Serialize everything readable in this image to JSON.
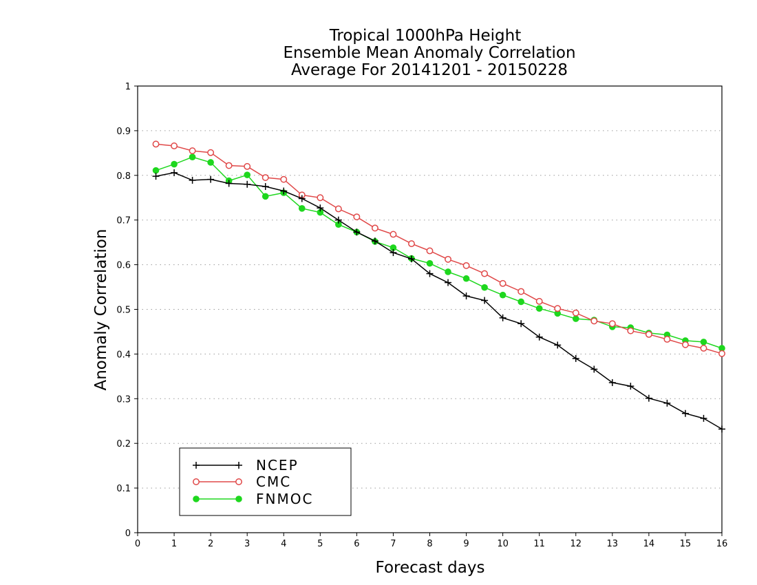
{
  "chart_data": {
    "type": "line",
    "title": [
      "Tropical 1000hPa Height",
      "Ensemble Mean Anomaly Correlation",
      "Average For 20141201 - 20150228"
    ],
    "xlabel": "Forecast days",
    "ylabel": "Anomaly Correlation",
    "xlim": [
      0,
      16
    ],
    "ylim": [
      0,
      1
    ],
    "xticks": [
      "0",
      "1",
      "2",
      "3",
      "4",
      "5",
      "6",
      "7",
      "8",
      "9",
      "10",
      "11",
      "12",
      "13",
      "14",
      "15",
      "16"
    ],
    "yticks": [
      "0",
      "0.1",
      "0.2",
      "0.3",
      "0.4",
      "0.5",
      "0.6",
      "0.7",
      "0.8",
      "0.9",
      "1"
    ],
    "grid": "dotted-horizontal",
    "legend_position": "bottom-left",
    "x": [
      0.5,
      1,
      1.5,
      2,
      2.5,
      3,
      3.5,
      4,
      4.5,
      5,
      5.5,
      6,
      6.5,
      7,
      7.5,
      8,
      8.5,
      9,
      9.5,
      10,
      10.5,
      11,
      11.5,
      12,
      12.5,
      13,
      13.5,
      14,
      14.5,
      15,
      15.5,
      16
    ],
    "series": [
      {
        "name": "NCEP",
        "color": "#000000",
        "marker": "plus",
        "values": [
          0.798,
          0.806,
          0.789,
          0.791,
          0.782,
          0.78,
          0.775,
          0.765,
          0.748,
          0.727,
          0.7,
          0.673,
          0.653,
          0.627,
          0.613,
          0.58,
          0.56,
          0.53,
          0.52,
          0.481,
          0.468,
          0.438,
          0.42,
          0.39,
          0.366,
          0.336,
          0.328,
          0.301,
          0.29,
          0.267,
          0.256,
          0.232
        ]
      },
      {
        "name": "CMC",
        "color": "#e04848",
        "marker": "open-circle",
        "values": [
          0.87,
          0.866,
          0.855,
          0.851,
          0.822,
          0.82,
          0.795,
          0.791,
          0.756,
          0.75,
          0.725,
          0.707,
          0.682,
          0.668,
          0.647,
          0.631,
          0.612,
          0.598,
          0.58,
          0.558,
          0.54,
          0.518,
          0.502,
          0.492,
          0.474,
          0.468,
          0.452,
          0.444,
          0.433,
          0.421,
          0.413,
          0.401
        ]
      },
      {
        "name": "FNMOC",
        "color": "#1ed71e",
        "marker": "filled-circle",
        "values": [
          0.811,
          0.825,
          0.841,
          0.829,
          0.788,
          0.801,
          0.753,
          0.761,
          0.726,
          0.717,
          0.69,
          0.673,
          0.652,
          0.638,
          0.614,
          0.603,
          0.584,
          0.569,
          0.549,
          0.532,
          0.517,
          0.502,
          0.491,
          0.479,
          0.476,
          0.461,
          0.459,
          0.447,
          0.443,
          0.43,
          0.427,
          0.413
        ]
      }
    ]
  }
}
